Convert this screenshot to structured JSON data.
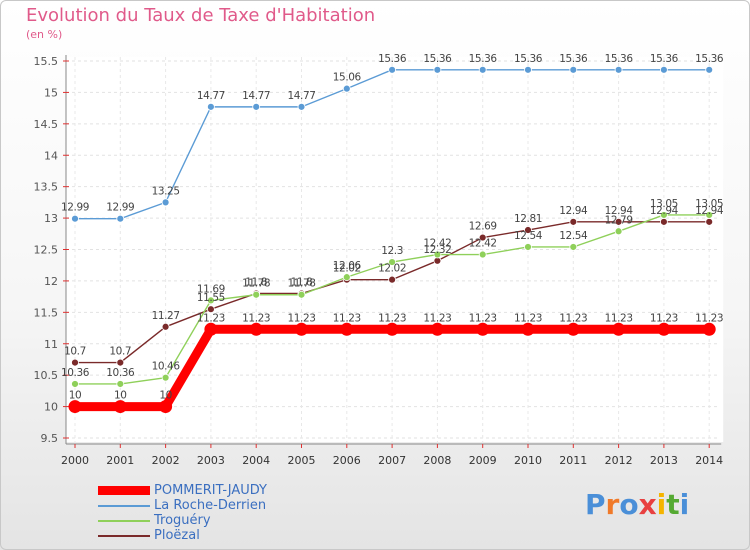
{
  "title": "Evolution du Taux de Taxe d'Habitation",
  "unit": "(en %)",
  "logo": {
    "text": "Proxiti",
    "colors": [
      "#4a8fd8",
      "#f07a2a",
      "#4a8fd8",
      "#e84040",
      "#f5b400",
      "#55aa33",
      "#4a8fd8"
    ]
  },
  "chart_data": {
    "type": "line",
    "categories": [
      "2000",
      "2001",
      "2002",
      "2003",
      "2004",
      "2005",
      "2006",
      "2007",
      "2008",
      "2009",
      "2010",
      "2011",
      "2012",
      "2013",
      "2014"
    ],
    "ylim": [
      9.5,
      15.5
    ],
    "yticks": [
      "9.5",
      "10",
      "10.5",
      "11",
      "11.5",
      "12",
      "12.5",
      "13",
      "13.5",
      "14",
      "14.5",
      "15",
      "15.5"
    ],
    "grid": true,
    "legend_position": "bottom-left",
    "series": [
      {
        "name": "POMMERIT-JAUDY",
        "color": "#ff0000",
        "values": [
          10,
          10,
          10,
          11.23,
          11.23,
          11.23,
          11.23,
          11.23,
          11.23,
          11.23,
          11.23,
          11.23,
          11.23,
          11.23,
          11.23
        ],
        "labels": [
          "10",
          "10",
          "10",
          "11.23",
          "11.23",
          "11.23",
          "11.23",
          "11.23",
          "11.23",
          "11.23",
          "11.23",
          "11.23",
          "11.23",
          "11.23",
          "11.23"
        ]
      },
      {
        "name": "La Roche-Derrien",
        "color": "#5b9bd5",
        "values": [
          12.99,
          12.99,
          13.25,
          14.77,
          14.77,
          14.77,
          15.06,
          15.36,
          15.36,
          15.36,
          15.36,
          15.36,
          15.36,
          15.36,
          15.36
        ],
        "labels": [
          "12.99",
          "12.99",
          "13.25",
          "14.77",
          "14.77",
          "14.77",
          "15.06",
          "15.36",
          "15.36",
          "15.36",
          "15.36",
          "15.36",
          "15.36",
          "15.36",
          "15.36"
        ]
      },
      {
        "name": "Troguéry",
        "color": "#8fd05a",
        "values": [
          10.36,
          10.36,
          10.46,
          11.69,
          11.78,
          11.78,
          12.06,
          12.3,
          12.42,
          12.42,
          12.54,
          12.54,
          12.79,
          13.05,
          13.05
        ],
        "labels": [
          "10.36",
          "10.36",
          "10.46",
          "11.69",
          "11.78",
          "11.78",
          "12.06",
          "12.3",
          "12.42",
          "12.42",
          "12.54",
          "12.54",
          "12.79",
          "13.05",
          "13.05"
        ]
      },
      {
        "name": "Ploëzal",
        "color": "#7a2a2a",
        "values": [
          10.7,
          10.7,
          11.27,
          11.55,
          11.8,
          11.8,
          12.02,
          12.02,
          12.32,
          12.69,
          12.81,
          12.94,
          12.94,
          12.94,
          12.94
        ],
        "labels": [
          "10.7",
          "10.7",
          "11.27",
          "11.55",
          "11.8",
          "11.8",
          "12.02",
          "12.02",
          "12.32",
          "12.69",
          "12.81",
          "12.94",
          "12.94",
          "12.94",
          "12.94"
        ]
      }
    ]
  }
}
